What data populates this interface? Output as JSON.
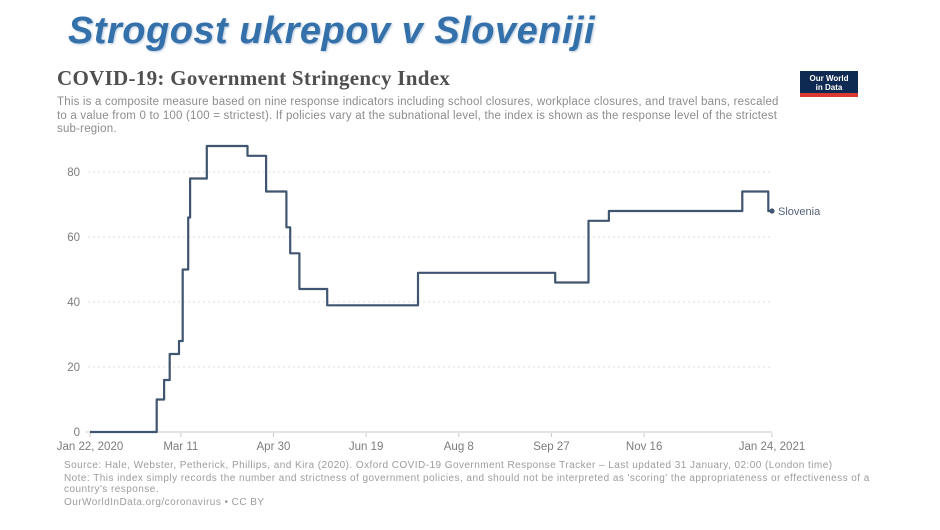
{
  "page": {
    "title": "Strogost ukrepov v Sloveniji",
    "title_color": "#3470a9"
  },
  "header": {
    "title": "COVID-19: Government Stringency Index",
    "subtitle": "This is a composite measure based on nine response indicators including school closures, workplace closures, and travel bans, rescaled to a value from 0 to 100 (100 = strictest). If policies vary at the subnational level, the index is shown as the response level of the strictest sub-region.",
    "logo": {
      "line1": "Our World",
      "line2": "in Data",
      "bg_color": "#0f2a52",
      "accent_color": "#dc3832"
    }
  },
  "chart_data": {
    "type": "line",
    "title": "COVID-19: Government Stringency Index",
    "series": [
      {
        "name": "Slovenia",
        "color": "#405570",
        "label_color": "#53627a",
        "steps_day_value": [
          [
            0,
            0
          ],
          [
            36,
            0
          ],
          [
            36,
            10
          ],
          [
            40,
            10
          ],
          [
            40,
            16
          ],
          [
            43,
            16
          ],
          [
            43,
            24
          ],
          [
            48,
            24
          ],
          [
            48,
            28
          ],
          [
            50,
            28
          ],
          [
            50,
            50
          ],
          [
            53,
            50
          ],
          [
            53,
            66
          ],
          [
            54,
            66
          ],
          [
            54,
            78
          ],
          [
            63,
            78
          ],
          [
            63,
            88
          ],
          [
            85,
            88
          ],
          [
            85,
            85
          ],
          [
            95,
            85
          ],
          [
            95,
            74
          ],
          [
            106,
            74
          ],
          [
            106,
            63
          ],
          [
            108,
            63
          ],
          [
            108,
            55
          ],
          [
            113,
            55
          ],
          [
            113,
            44
          ],
          [
            128,
            44
          ],
          [
            128,
            39
          ],
          [
            177,
            39
          ],
          [
            177,
            49
          ],
          [
            251,
            49
          ],
          [
            251,
            46
          ],
          [
            269,
            46
          ],
          [
            269,
            65
          ],
          [
            280,
            65
          ],
          [
            280,
            68
          ],
          [
            352,
            68
          ],
          [
            352,
            74
          ],
          [
            366,
            74
          ],
          [
            366,
            68
          ],
          [
            368,
            68
          ]
        ]
      }
    ],
    "x_ticks": [
      {
        "day": 0,
        "label": "Jan 22, 2020"
      },
      {
        "day": 49,
        "label": "Mar 11"
      },
      {
        "day": 99,
        "label": "Apr 30"
      },
      {
        "day": 149,
        "label": "Jun 19"
      },
      {
        "day": 199,
        "label": "Aug 8"
      },
      {
        "day": 249,
        "label": "Sep 27"
      },
      {
        "day": 299,
        "label": "Nov 16"
      },
      {
        "day": 368,
        "label": "Jan 24, 2021"
      }
    ],
    "y_ticks": [
      0,
      20,
      40,
      60,
      80
    ],
    "xlim_days": [
      0,
      368
    ],
    "ylim": [
      0,
      92
    ],
    "grid": "horizontal-dashed",
    "grid_color": "#dcdcdc",
    "axis_color": "#c9c9c9",
    "tick_label_color": "#7c7c7c",
    "legend_position": "end-of-line"
  },
  "footer": {
    "source": "Source: Hale, Webster, Petherick, Phillips, and Kira (2020). Oxford COVID-19 Government Response Tracker – Last updated 31 January, 02:00 (London time)",
    "note": "Note: This index simply records the number and strictness of government policies, and should not be interpreted as 'scoring' the appropriateness or effectiveness of a country's response.",
    "license": "OurWorldInData.org/coronavirus • CC BY"
  }
}
